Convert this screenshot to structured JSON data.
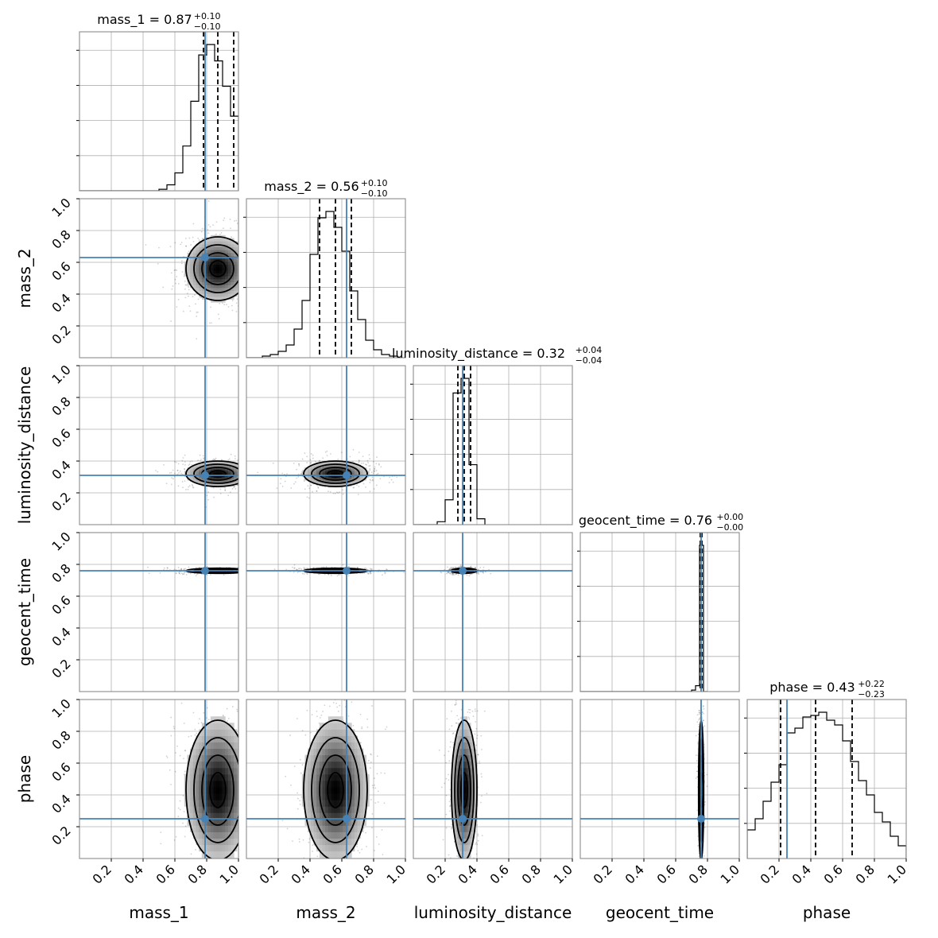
{
  "chart_data": {
    "type": "corner",
    "parameters": [
      "mass_1",
      "mass_2",
      "luminosity_distance",
      "geocent_time",
      "phase"
    ],
    "axis_range": [
      0.0,
      1.0
    ],
    "tick_values": [
      0.2,
      0.4,
      0.6,
      0.8,
      1.0
    ],
    "tick_labels": [
      "0.2",
      "0.4",
      "0.6",
      "0.8",
      "1.0"
    ],
    "grid": true,
    "titles": [
      {
        "param": "mass_1",
        "text": "mass_1 = 0.87",
        "plus": "+0.10",
        "minus": "−0.10"
      },
      {
        "param": "mass_2",
        "text": "mass_2 = 0.56",
        "plus": "+0.10",
        "minus": "−0.10"
      },
      {
        "param": "luminosity_distance",
        "text": "luminosity_distance = 0.32",
        "plus": "+0.04",
        "minus": "−0.04"
      },
      {
        "param": "geocent_time",
        "text": "geocent_time = 0.76",
        "plus": "+0.00",
        "minus": "−0.00"
      },
      {
        "param": "phase",
        "text": "phase = 0.43",
        "plus": "+0.22",
        "minus": "−0.23"
      }
    ],
    "medians": [
      0.87,
      0.56,
      0.32,
      0.76,
      0.43
    ],
    "quantile_16": [
      0.78,
      0.46,
      0.28,
      0.755,
      0.21
    ],
    "quantile_84": [
      0.97,
      0.66,
      0.36,
      0.765,
      0.66
    ],
    "truths": [
      0.79,
      0.63,
      0.31,
      0.76,
      0.25
    ],
    "truth_color": "#4682b4",
    "histograms": [
      {
        "param": "mass_1",
        "bins": [
          0.5,
          0.55,
          0.6,
          0.65,
          0.7,
          0.75,
          0.8,
          0.85,
          0.9,
          0.95,
          1.0
        ],
        "counts": [
          1,
          4,
          12,
          30,
          60,
          91,
          98,
          87,
          70,
          50
        ]
      },
      {
        "param": "mass_2",
        "bins": [
          0.1,
          0.15,
          0.2,
          0.25,
          0.3,
          0.35,
          0.4,
          0.45,
          0.5,
          0.55,
          0.6,
          0.65,
          0.7,
          0.75,
          0.8,
          0.85,
          0.9,
          0.95
        ],
        "counts": [
          1,
          2,
          4,
          8,
          18,
          36,
          65,
          88,
          92,
          82,
          67,
          42,
          24,
          11,
          5,
          2,
          1
        ]
      },
      {
        "param": "luminosity_distance",
        "bins": [
          0.15,
          0.2,
          0.25,
          0.3,
          0.35,
          0.4,
          0.45
        ],
        "counts": [
          2,
          17,
          90,
          100,
          41,
          4
        ]
      },
      {
        "param": "geocent_time",
        "bins": [
          0.7,
          0.725,
          0.75,
          0.775,
          0.8
        ],
        "counts": [
          1,
          4,
          100,
          0
        ]
      },
      {
        "param": "phase",
        "bins": [
          0.0,
          0.05,
          0.1,
          0.15,
          0.2,
          0.25,
          0.3,
          0.35,
          0.4,
          0.45,
          0.5,
          0.55,
          0.6,
          0.65,
          0.7,
          0.75,
          0.8,
          0.85,
          0.9,
          0.95,
          1.0
        ],
        "counts": [
          18,
          25,
          36,
          48,
          59,
          79,
          82,
          89,
          90,
          92,
          87,
          84,
          74,
          61,
          49,
          40,
          29,
          23,
          14,
          8
        ]
      }
    ],
    "posterior_2d": [
      {
        "x": "mass_1",
        "y": "mass_2",
        "center": [
          0.87,
          0.56
        ],
        "sigma": [
          0.1,
          0.1
        ]
      },
      {
        "x": "mass_1",
        "y": "luminosity_distance",
        "center": [
          0.87,
          0.32
        ],
        "sigma": [
          0.1,
          0.04
        ]
      },
      {
        "x": "mass_2",
        "y": "luminosity_distance",
        "center": [
          0.56,
          0.32
        ],
        "sigma": [
          0.1,
          0.04
        ]
      },
      {
        "x": "mass_1",
        "y": "geocent_time",
        "center": [
          0.87,
          0.76
        ],
        "sigma": [
          0.1,
          0.008
        ]
      },
      {
        "x": "mass_2",
        "y": "geocent_time",
        "center": [
          0.56,
          0.76
        ],
        "sigma": [
          0.1,
          0.008
        ]
      },
      {
        "x": "luminosity_distance",
        "y": "geocent_time",
        "center": [
          0.32,
          0.76
        ],
        "sigma": [
          0.04,
          0.008
        ]
      },
      {
        "x": "mass_1",
        "y": "phase",
        "center": [
          0.87,
          0.43
        ],
        "sigma": [
          0.1,
          0.22
        ]
      },
      {
        "x": "mass_2",
        "y": "phase",
        "center": [
          0.56,
          0.43
        ],
        "sigma": [
          0.1,
          0.22
        ]
      },
      {
        "x": "luminosity_distance",
        "y": "phase",
        "center": [
          0.32,
          0.43
        ],
        "sigma": [
          0.04,
          0.22
        ]
      },
      {
        "x": "geocent_time",
        "y": "phase",
        "center": [
          0.76,
          0.43
        ],
        "sigma": [
          0.008,
          0.22
        ]
      }
    ]
  }
}
